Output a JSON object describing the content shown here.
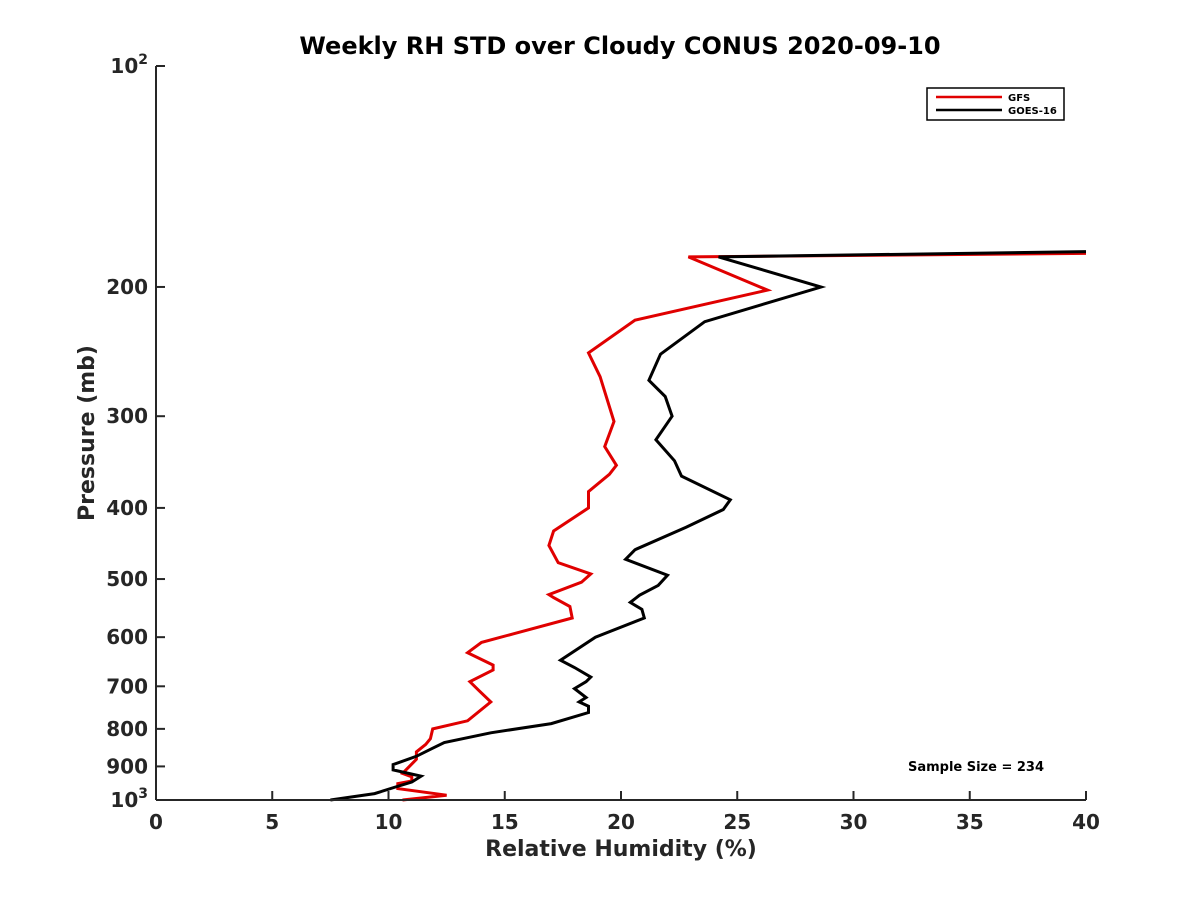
{
  "chart_data": {
    "type": "line",
    "title": "Weekly RH STD over Cloudy CONUS 2020-09-10",
    "xlabel": "Relative Humidity (%)",
    "ylabel": "Pressure (mb)",
    "xlim": [
      0,
      40
    ],
    "ylim": [
      100,
      1000
    ],
    "y_scale": "log",
    "y_reversed": true,
    "grid": false,
    "legend_position": "top-right",
    "x_ticks": [
      "0",
      "5",
      "10",
      "15",
      "20",
      "25",
      "30",
      "35",
      "40"
    ],
    "y_ticks": [
      {
        "value": 100,
        "base": "10",
        "exp": "2"
      },
      {
        "value": 200,
        "label": "200"
      },
      {
        "value": 300,
        "label": "300"
      },
      {
        "value": 400,
        "label": "400"
      },
      {
        "value": 500,
        "label": "500"
      },
      {
        "value": 600,
        "label": "600"
      },
      {
        "value": 700,
        "label": "700"
      },
      {
        "value": 800,
        "label": "800"
      },
      {
        "value": 900,
        "label": "900"
      },
      {
        "value": 1000,
        "base": "10",
        "exp": "3"
      }
    ],
    "annotation": "Sample Size = 234",
    "series": [
      {
        "name": "GFS",
        "color": "#e00000",
        "points": [
          [
            10.6,
            1000
          ],
          [
            12.5,
            985
          ],
          [
            10.4,
            965
          ],
          [
            10.4,
            950
          ],
          [
            11.0,
            942
          ],
          [
            11.0,
            930
          ],
          [
            10.6,
            920
          ],
          [
            11.2,
            880
          ],
          [
            11.2,
            860
          ],
          [
            11.6,
            840
          ],
          [
            11.8,
            825
          ],
          [
            11.9,
            800
          ],
          [
            13.4,
            780
          ],
          [
            14.4,
            735
          ],
          [
            13.9,
            710
          ],
          [
            13.5,
            690
          ],
          [
            14.5,
            665
          ],
          [
            14.5,
            655
          ],
          [
            13.4,
            630
          ],
          [
            14.0,
            610
          ],
          [
            17.9,
            565
          ],
          [
            17.8,
            545
          ],
          [
            17.1,
            530
          ],
          [
            16.9,
            525
          ],
          [
            18.3,
            505
          ],
          [
            18.7,
            492
          ],
          [
            17.3,
            475
          ],
          [
            16.9,
            450
          ],
          [
            17.1,
            430
          ],
          [
            18.6,
            400
          ],
          [
            18.6,
            380
          ],
          [
            19.5,
            360
          ],
          [
            19.8,
            350
          ],
          [
            19.3,
            330
          ],
          [
            19.7,
            305
          ],
          [
            19.1,
            265
          ],
          [
            18.6,
            246
          ],
          [
            20.6,
            222
          ],
          [
            26.3,
            202
          ],
          [
            22.9,
            182
          ],
          [
            40.0,
            180
          ]
        ]
      },
      {
        "name": "GOES-16",
        "color": "#000000",
        "points": [
          [
            7.5,
            1000
          ],
          [
            9.4,
            980
          ],
          [
            10.3,
            960
          ],
          [
            11.0,
            945
          ],
          [
            11.4,
            928
          ],
          [
            10.2,
            910
          ],
          [
            10.2,
            895
          ],
          [
            11.2,
            872
          ],
          [
            11.9,
            850
          ],
          [
            12.4,
            835
          ],
          [
            14.4,
            810
          ],
          [
            17.0,
            787
          ],
          [
            18.6,
            760
          ],
          [
            18.6,
            745
          ],
          [
            18.2,
            735
          ],
          [
            18.5,
            725
          ],
          [
            18.0,
            705
          ],
          [
            18.5,
            690
          ],
          [
            18.7,
            680
          ],
          [
            18.0,
            660
          ],
          [
            17.4,
            645
          ],
          [
            18.9,
            600
          ],
          [
            21.0,
            565
          ],
          [
            20.9,
            550
          ],
          [
            20.4,
            538
          ],
          [
            20.8,
            526
          ],
          [
            21.6,
            510
          ],
          [
            22.0,
            494
          ],
          [
            20.2,
            470
          ],
          [
            20.6,
            456
          ],
          [
            22.8,
            425
          ],
          [
            24.4,
            402
          ],
          [
            24.7,
            390
          ],
          [
            22.6,
            362
          ],
          [
            22.3,
            345
          ],
          [
            21.5,
            323
          ],
          [
            22.2,
            300
          ],
          [
            21.9,
            282
          ],
          [
            21.2,
            268
          ],
          [
            21.7,
            247
          ],
          [
            23.6,
            223
          ],
          [
            28.6,
            200
          ],
          [
            24.2,
            182
          ],
          [
            40.0,
            179
          ]
        ]
      }
    ]
  }
}
